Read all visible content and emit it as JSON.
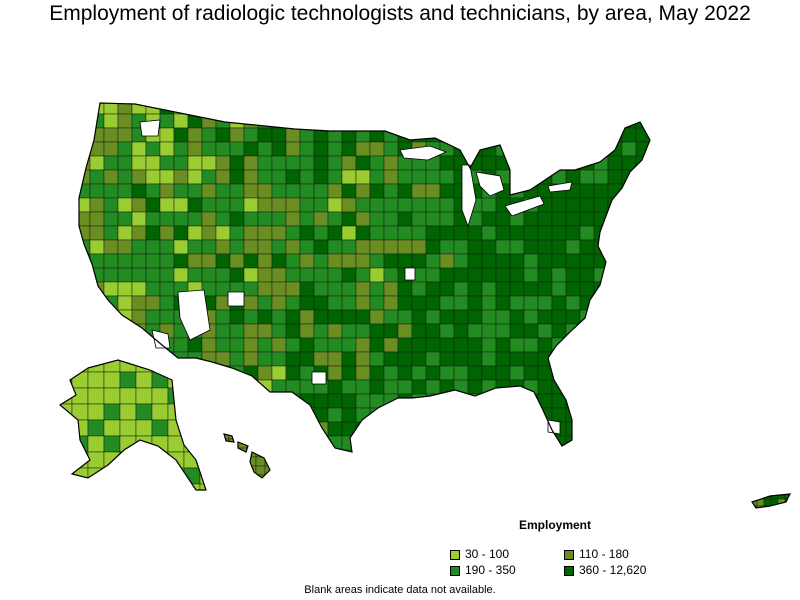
{
  "title": "Employment of radiologic technologists and technicians, by area, May 2022",
  "legend": {
    "title": "Employment",
    "items": [
      {
        "label": "30 - 100",
        "color": "#9acd32"
      },
      {
        "label": "110 - 180",
        "color": "#6b8e23"
      },
      {
        "label": "190 - 350",
        "color": "#228b22"
      },
      {
        "label": "360 - 12,620",
        "color": "#006400"
      }
    ]
  },
  "note": "Blank areas indicate data not available.",
  "colors": {
    "no_data": "#ffffff",
    "border": "#000000",
    "water": "#ffffff"
  }
}
